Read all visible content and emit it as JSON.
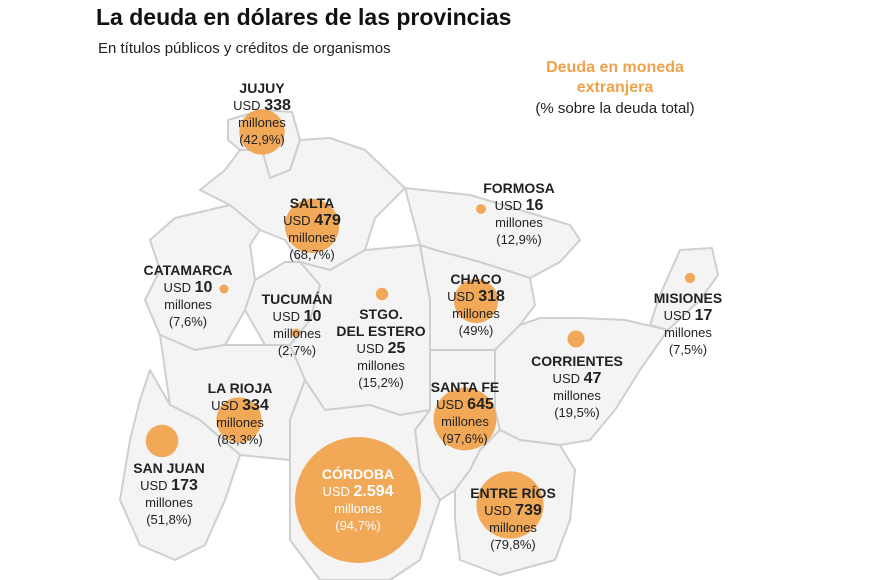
{
  "title": "La deuda en dólares de las provincias",
  "subtitle": "En títulos públicos y créditos de organismos",
  "legend": {
    "title_line1": "Deuda en moneda",
    "title_line2": "extranjera",
    "note": "(% sobre la deuda total)"
  },
  "colors": {
    "bubble": "#f0a24a",
    "map_fill": "#f4f4f4",
    "border": "#cfcfcf"
  },
  "unit_label": "millones",
  "currency_label": "USD",
  "provinces": [
    {
      "key": "jujuy",
      "name": "JUJUY",
      "amount_text": "338",
      "amount": 338,
      "pct_text": "(42,9%)"
    },
    {
      "key": "salta",
      "name": "SALTA",
      "amount_text": "479",
      "amount": 479,
      "pct_text": "(68,7%)"
    },
    {
      "key": "formosa",
      "name": "FORMOSA",
      "amount_text": "16",
      "amount": 16,
      "pct_text": "(12,9%)"
    },
    {
      "key": "catamarca",
      "name": "CATAMARCA",
      "amount_text": "10",
      "amount": 10,
      "pct_text": "(7,6%)"
    },
    {
      "key": "tucuman",
      "name": "TUCUMÁN",
      "amount_text": "10",
      "amount": 10,
      "pct_text": "(2,7%)"
    },
    {
      "key": "santiago",
      "name_line1": "STGO.",
      "name_line2": "DEL ESTERO",
      "amount_text": "25",
      "amount": 25,
      "pct_text": "(15,2%)"
    },
    {
      "key": "chaco",
      "name": "CHACO",
      "amount_text": "318",
      "amount": 318,
      "pct_text": "(49%)"
    },
    {
      "key": "misiones",
      "name": "MISIONES",
      "amount_text": "17",
      "amount": 17,
      "pct_text": "(7,5%)"
    },
    {
      "key": "corrientes",
      "name": "CORRIENTES",
      "amount_text": "47",
      "amount": 47,
      "pct_text": "(19,5%)"
    },
    {
      "key": "larioja",
      "name": "LA RIOJA",
      "amount_text": "334",
      "amount": 334,
      "pct_text": "(83,3%)"
    },
    {
      "key": "santafe",
      "name": "SANTA FE",
      "amount_text": "645",
      "amount": 645,
      "pct_text": "(97,6%)"
    },
    {
      "key": "sanjuan",
      "name": "SAN JUAN",
      "amount_text": "173",
      "amount": 173,
      "pct_text": "(51,8%)"
    },
    {
      "key": "cordoba",
      "name": "CÓRDOBA",
      "amount_text": "2.594",
      "amount": 2594,
      "pct_text": "(94,7%)"
    },
    {
      "key": "entrerios",
      "name": "ENTRE RÍOS",
      "amount_text": "739",
      "amount": 739,
      "pct_text": "(79,8%)"
    }
  ]
}
